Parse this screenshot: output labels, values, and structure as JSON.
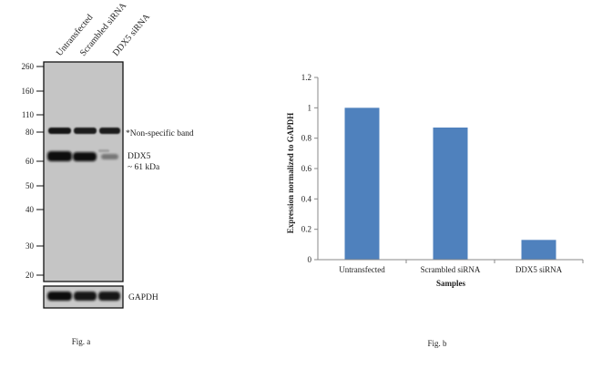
{
  "figure_a": {
    "caption": "Fig. a",
    "lanes": [
      "Untransfected",
      "Scrambled siRNA",
      "DDX5 siRNA"
    ],
    "markers_kda": [
      260,
      160,
      110,
      80,
      60,
      50,
      40,
      30,
      20
    ],
    "annotations": {
      "nonspecific": "*Non-specific band",
      "target_name": "DDX5",
      "target_size": "~ 61 kDa",
      "loading_control": "GAPDH"
    }
  },
  "chart_data": {
    "type": "bar",
    "categories": [
      "Untransfected",
      "Scrambled siRNA",
      "DDX5 siRNA"
    ],
    "values": [
      1.0,
      0.87,
      0.13
    ],
    "title": "",
    "xlabel": "Samples",
    "ylabel": "Expression  normalized to GAPDH",
    "ylim": [
      0,
      1.2
    ],
    "yticks": [
      0,
      0.2,
      0.4,
      0.6,
      0.8,
      1,
      1.2
    ],
    "bar_color": "#4f81bd",
    "grid": false,
    "caption": "Fig. b"
  }
}
